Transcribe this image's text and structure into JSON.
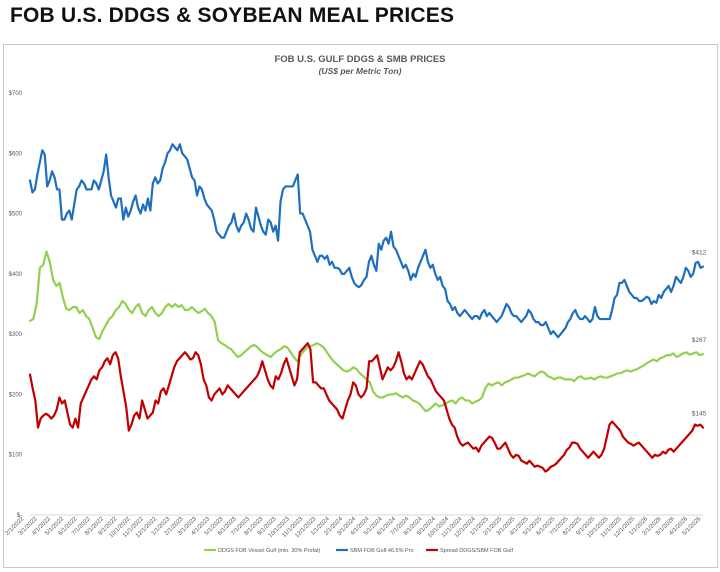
{
  "page_title": "FOB U.S. DDGS & SOYBEAN MEAL PRICES",
  "chart_data": {
    "type": "line",
    "title": "FOB U.S. GULF DDGS & SMB PRICES",
    "subtitle": "(US$ per Metric Ton)",
    "ylim": [
      0,
      700
    ],
    "y_ticks": [
      "$-",
      "$100",
      "$200",
      "$300",
      "$400",
      "$500",
      "$600",
      "$700"
    ],
    "grid": false,
    "legend_position": "bottom",
    "x_labels": [
      "2/1/2022",
      "3/1/2022",
      "4/1/2022",
      "5/1/2022",
      "6/1/2022",
      "7/1/2022",
      "8/1/2022",
      "9/1/2022",
      "10/1/2022",
      "11/1/2022",
      "12/1/2022",
      "1/1/2023",
      "2/1/2023",
      "3/1/2023",
      "4/1/2023",
      "5/1/2023",
      "6/1/2023",
      "7/1/2023",
      "8/1/2023",
      "9/1/2023",
      "10/1/2023",
      "11/1/2023",
      "12/1/2023",
      "1/1/2024",
      "2/1/2024",
      "3/1/2024",
      "4/1/2024",
      "5/1/2024",
      "6/1/2024",
      "7/1/2024",
      "8/1/2024",
      "9/1/2024",
      "10/1/2024",
      "11/1/2024",
      "12/1/2024",
      "1/1/2025",
      "2/1/2025",
      "3/1/2025",
      "4/1/2025",
      "5/1/2025",
      "6/1/2025",
      "7/1/2025",
      "8/1/2025",
      "9/1/2025",
      "10/1/2025",
      "11/1/2025",
      "12/1/2025",
      "1/1/2026",
      "2/1/2026",
      "3/1/2026",
      "4/1/2026",
      "5/1/2026"
    ],
    "series": [
      {
        "name": "DDGS FOB Vessel Gulf (min. 30% Profat)",
        "color": "#92D050",
        "end_label": "$267",
        "values": [
          322,
          325,
          350,
          410,
          415,
          437,
          420,
          390,
          380,
          385,
          360,
          342,
          340,
          345,
          345,
          335,
          340,
          330,
          325,
          310,
          295,
          292,
          305,
          315,
          325,
          330,
          340,
          345,
          355,
          350,
          340,
          335,
          345,
          350,
          335,
          330,
          340,
          345,
          335,
          330,
          335,
          345,
          350,
          345,
          350,
          345,
          348,
          340,
          340,
          345,
          340,
          335,
          338,
          342,
          335,
          330,
          320,
          290,
          285,
          282,
          278,
          275,
          268,
          262,
          265,
          270,
          275,
          280,
          282,
          278,
          272,
          268,
          265,
          262,
          268,
          272,
          275,
          280,
          278,
          270,
          262,
          255,
          265,
          272,
          278,
          280,
          282,
          285,
          282,
          278,
          270,
          262,
          255,
          250,
          245,
          240,
          238,
          240,
          245,
          242,
          235,
          230,
          225,
          220,
          205,
          198,
          195,
          195,
          198,
          200,
          200,
          202,
          198,
          195,
          198,
          195,
          190,
          188,
          185,
          178,
          172,
          175,
          180,
          185,
          180,
          182,
          185,
          188,
          190,
          185,
          192,
          195,
          190,
          190,
          185,
          188,
          190,
          195,
          210,
          218,
          215,
          218,
          220,
          215,
          220,
          222,
          225,
          228,
          228,
          230,
          232,
          235,
          232,
          230,
          235,
          238,
          236,
          230,
          228,
          225,
          228,
          228,
          225,
          225,
          225,
          222,
          228,
          230,
          226,
          226,
          228,
          225,
          228,
          230,
          228,
          228,
          230,
          232,
          235,
          235,
          238,
          240,
          238,
          240,
          242,
          245,
          248,
          252,
          255,
          258,
          255,
          260,
          262,
          265,
          265,
          268,
          262,
          265,
          268,
          270,
          266,
          268,
          270,
          265,
          267
        ]
      },
      {
        "name": "SBM FOB Gulf 46.5% Pro",
        "color": "#1F6FC0",
        "end_label": "$412",
        "values": [
          555,
          535,
          540,
          565,
          585,
          605,
          598,
          545,
          555,
          570,
          560,
          540,
          540,
          490,
          490,
          500,
          505,
          490,
          515,
          540,
          545,
          555,
          550,
          540,
          540,
          540,
          555,
          550,
          540,
          555,
          570,
          598,
          560,
          530,
          520,
          510,
          525,
          525,
          490,
          510,
          495,
          505,
          520,
          530,
          510,
          500,
          515,
          505,
          525,
          505,
          550,
          560,
          550,
          555,
          575,
          585,
          600,
          605,
          615,
          610,
          605,
          615,
          600,
          595,
          590,
          575,
          560,
          555,
          530,
          545,
          540,
          525,
          515,
          510,
          505,
          490,
          470,
          465,
          460,
          460,
          470,
          480,
          485,
          500,
          480,
          470,
          480,
          485,
          500,
          490,
          475,
          470,
          510,
          495,
          480,
          470,
          465,
          490,
          485,
          470,
          480,
          455,
          520,
          540,
          545,
          545,
          545,
          545,
          555,
          565,
          500,
          500,
          490,
          480,
          470,
          440,
          430,
          420,
          430,
          430,
          425,
          430,
          415,
          420,
          410,
          410,
          408,
          400,
          400,
          405,
          410,
          395,
          385,
          380,
          378,
          382,
          390,
          395,
          420,
          430,
          415,
          405,
          450,
          440,
          455,
          460,
          450,
          470,
          445,
          440,
          430,
          420,
          410,
          415,
          405,
          390,
          400,
          395,
          410,
          420,
          430,
          440,
          420,
          410,
          415,
          400,
          390,
          395,
          380,
          375,
          355,
          350,
          340,
          345,
          335,
          330,
          335,
          340,
          335,
          330,
          325,
          330,
          330,
          325,
          335,
          340,
          330,
          335,
          330,
          325,
          320,
          325,
          330,
          340,
          350,
          345,
          335,
          330,
          330,
          325,
          320,
          325,
          330,
          340,
          335,
          325,
          320,
          320,
          315,
          315,
          320,
          310,
          300,
          305,
          300,
          295,
          300,
          305,
          310,
          320,
          325,
          335,
          340,
          330,
          325,
          325,
          330,
          325,
          320,
          325,
          345,
          330,
          325,
          325,
          325,
          325,
          325,
          340,
          360,
          365,
          385,
          385,
          390,
          380,
          370,
          365,
          360,
          360,
          355,
          355,
          358,
          362,
          360,
          350,
          355,
          352,
          365,
          360,
          370,
          375,
          380,
          370,
          380,
          395,
          390,
          385,
          395,
          410,
          405,
          395,
          400,
          418,
          420,
          410,
          412
        ]
      },
      {
        "name": "Spread DDGS/SBM FOB Gulf",
        "color": "#C00000",
        "end_label": "$145",
        "values": [
          233,
          210,
          190,
          145,
          160,
          165,
          168,
          165,
          160,
          165,
          175,
          195,
          185,
          190,
          170,
          150,
          145,
          160,
          145,
          185,
          195,
          205,
          215,
          225,
          230,
          225,
          240,
          245,
          255,
          260,
          250,
          265,
          270,
          260,
          230,
          205,
          180,
          140,
          150,
          165,
          170,
          160,
          190,
          175,
          160,
          165,
          170,
          190,
          185,
          205,
          210,
          200,
          215,
          230,
          245,
          255,
          260,
          265,
          270,
          265,
          258,
          260,
          270,
          265,
          250,
          225,
          215,
          195,
          190,
          200,
          205,
          210,
          200,
          205,
          215,
          210,
          205,
          200,
          195,
          200,
          205,
          210,
          215,
          220,
          225,
          230,
          240,
          255,
          240,
          225,
          215,
          210,
          230,
          225,
          235,
          250,
          260,
          245,
          230,
          215,
          225,
          270,
          275,
          280,
          285,
          275,
          220,
          220,
          215,
          210,
          210,
          200,
          190,
          185,
          180,
          175,
          165,
          160,
          175,
          190,
          200,
          220,
          215,
          200,
          195,
          200,
          210,
          255,
          255,
          260,
          265,
          245,
          225,
          235,
          245,
          240,
          245,
          255,
          270,
          255,
          235,
          225,
          230,
          225,
          235,
          245,
          255,
          250,
          240,
          230,
          225,
          215,
          205,
          200,
          195,
          190,
          175,
          160,
          150,
          145,
          130,
          120,
          115,
          118,
          120,
          115,
          110,
          112,
          105,
          115,
          120,
          125,
          130,
          128,
          120,
          110,
          110,
          115,
          120,
          110,
          100,
          95,
          100,
          98,
          90,
          88,
          85,
          90,
          85,
          80,
          82,
          80,
          78,
          72,
          75,
          80,
          82,
          85,
          90,
          95,
          100,
          108,
          112,
          120,
          120,
          118,
          110,
          105,
          100,
          95,
          100,
          105,
          100,
          95,
          100,
          110,
          130,
          150,
          155,
          150,
          145,
          140,
          130,
          125,
          120,
          118,
          115,
          118,
          120,
          115,
          110,
          105,
          100,
          95,
          100,
          98,
          100,
          105,
          102,
          108,
          110,
          105,
          110,
          115,
          120,
          125,
          130,
          135,
          140,
          150,
          148,
          150,
          145
        ]
      }
    ]
  }
}
